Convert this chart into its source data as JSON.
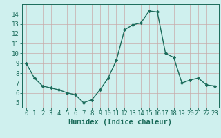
{
  "x": [
    0,
    1,
    2,
    3,
    4,
    5,
    6,
    7,
    8,
    9,
    10,
    11,
    12,
    13,
    14,
    15,
    16,
    17,
    18,
    19,
    20,
    21,
    22,
    23
  ],
  "y": [
    9.0,
    7.5,
    6.7,
    6.5,
    6.3,
    6.0,
    5.8,
    5.0,
    5.3,
    6.3,
    7.5,
    9.3,
    12.4,
    12.9,
    13.1,
    14.3,
    14.2,
    10.0,
    9.6,
    7.0,
    7.3,
    7.5,
    6.8,
    6.7
  ],
  "line_color": "#1a6b5a",
  "marker": "D",
  "marker_size": 2.2,
  "line_width": 1.0,
  "xlabel": "Humidex (Indice chaleur)",
  "ylim": [
    4.5,
    15.0
  ],
  "xlim": [
    -0.5,
    23.5
  ],
  "yticks": [
    5,
    6,
    7,
    8,
    9,
    10,
    11,
    12,
    13,
    14
  ],
  "xticks": [
    0,
    1,
    2,
    3,
    4,
    5,
    6,
    7,
    8,
    9,
    10,
    11,
    12,
    13,
    14,
    15,
    16,
    17,
    18,
    19,
    20,
    21,
    22,
    23
  ],
  "bg_color": "#cff0ee",
  "grid_color": "#c8aaaa",
  "tick_color": "#1a6b5a",
  "label_color": "#1a6b5a",
  "xlabel_fontsize": 7.5,
  "tick_fontsize": 6.5
}
